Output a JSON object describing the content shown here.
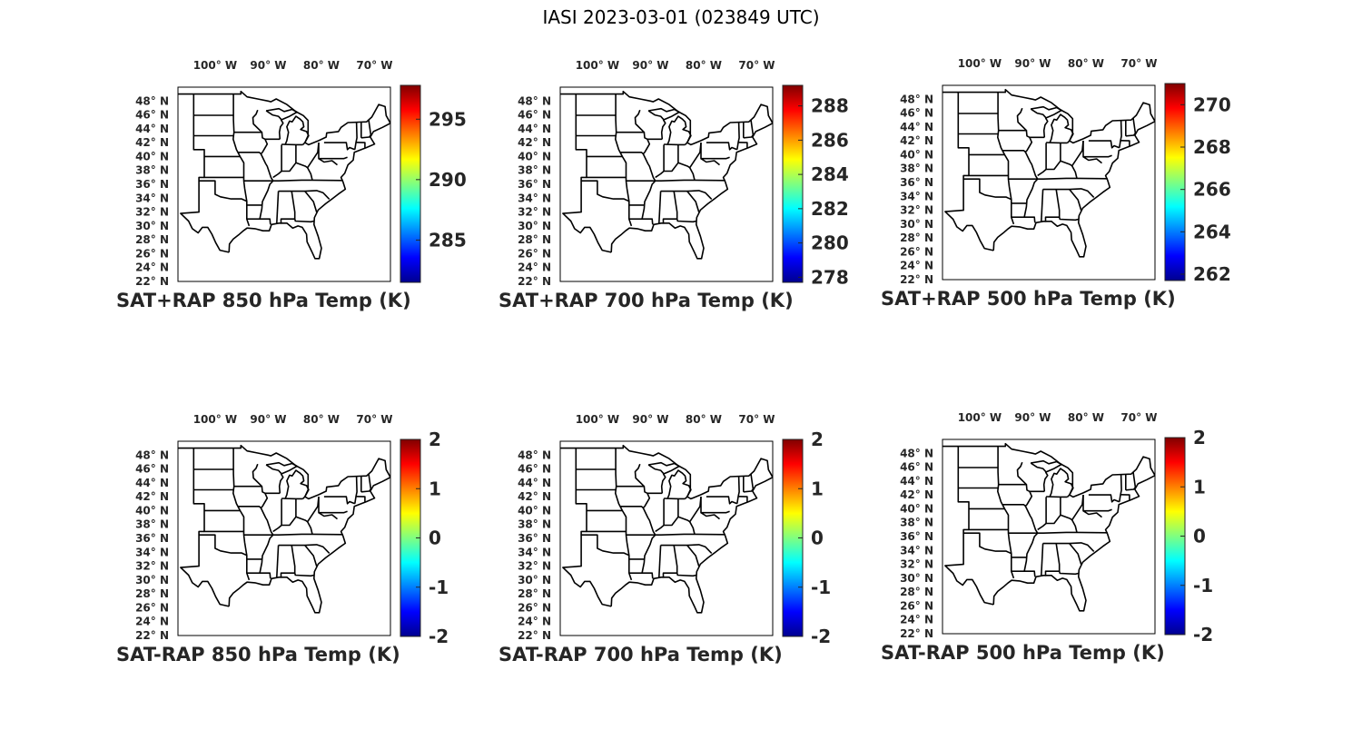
{
  "title": "IASI 2023-03-01 (023849 UTC)",
  "map_axes": {
    "lon_ticks": [
      {
        "lon": -100,
        "label": "100° W"
      },
      {
        "lon": -90,
        "label": "90° W"
      },
      {
        "lon": -80,
        "label": "80° W"
      },
      {
        "lon": -70,
        "label": "70° W"
      }
    ],
    "lat_ticks": [
      {
        "lat": 48,
        "label": "48° N"
      },
      {
        "lat": 46,
        "label": "46° N"
      },
      {
        "lat": 44,
        "label": "44° N"
      },
      {
        "lat": 42,
        "label": "42° N"
      },
      {
        "lat": 40,
        "label": "40° N"
      },
      {
        "lat": 38,
        "label": "38° N"
      },
      {
        "lat": 36,
        "label": "36° N"
      },
      {
        "lat": 34,
        "label": "34° N"
      },
      {
        "lat": 32,
        "label": "32° N"
      },
      {
        "lat": 30,
        "label": "30° N"
      },
      {
        "lat": 28,
        "label": "28° N"
      },
      {
        "lat": 26,
        "label": "26° N"
      },
      {
        "lat": 24,
        "label": "24° N"
      },
      {
        "lat": 22,
        "label": "22° N"
      }
    ]
  },
  "colormap": "jet",
  "panels": [
    {
      "title": "SAT+RAP 850 hPa Temp (K)",
      "colorbar": {
        "min": 281.5,
        "max": 297.8,
        "ticks": [
          285,
          290,
          295
        ]
      }
    },
    {
      "title": "SAT+RAP 700 hPa Temp (K)",
      "colorbar": {
        "min": 277.7,
        "max": 289.2,
        "ticks": [
          278,
          280,
          282,
          284,
          286,
          288
        ]
      }
    },
    {
      "title": "SAT+RAP 500 hPa Temp (K)",
      "colorbar": {
        "min": 261.7,
        "max": 271.0,
        "ticks": [
          262,
          264,
          266,
          268,
          270
        ]
      }
    },
    {
      "title": "SAT-RAP 850 hPa Temp (K)",
      "colorbar": {
        "min": -2,
        "max": 2,
        "ticks": [
          -2,
          -1,
          0,
          1,
          2
        ]
      }
    },
    {
      "title": "SAT-RAP 700 hPa Temp (K)",
      "colorbar": {
        "min": -2,
        "max": 2,
        "ticks": [
          -2,
          -1,
          0,
          1,
          2
        ]
      }
    },
    {
      "title": "SAT-RAP 500 hPa Temp (K)",
      "colorbar": {
        "min": -2,
        "max": 2,
        "ticks": [
          -2,
          -1,
          0,
          1,
          2
        ]
      }
    }
  ]
}
